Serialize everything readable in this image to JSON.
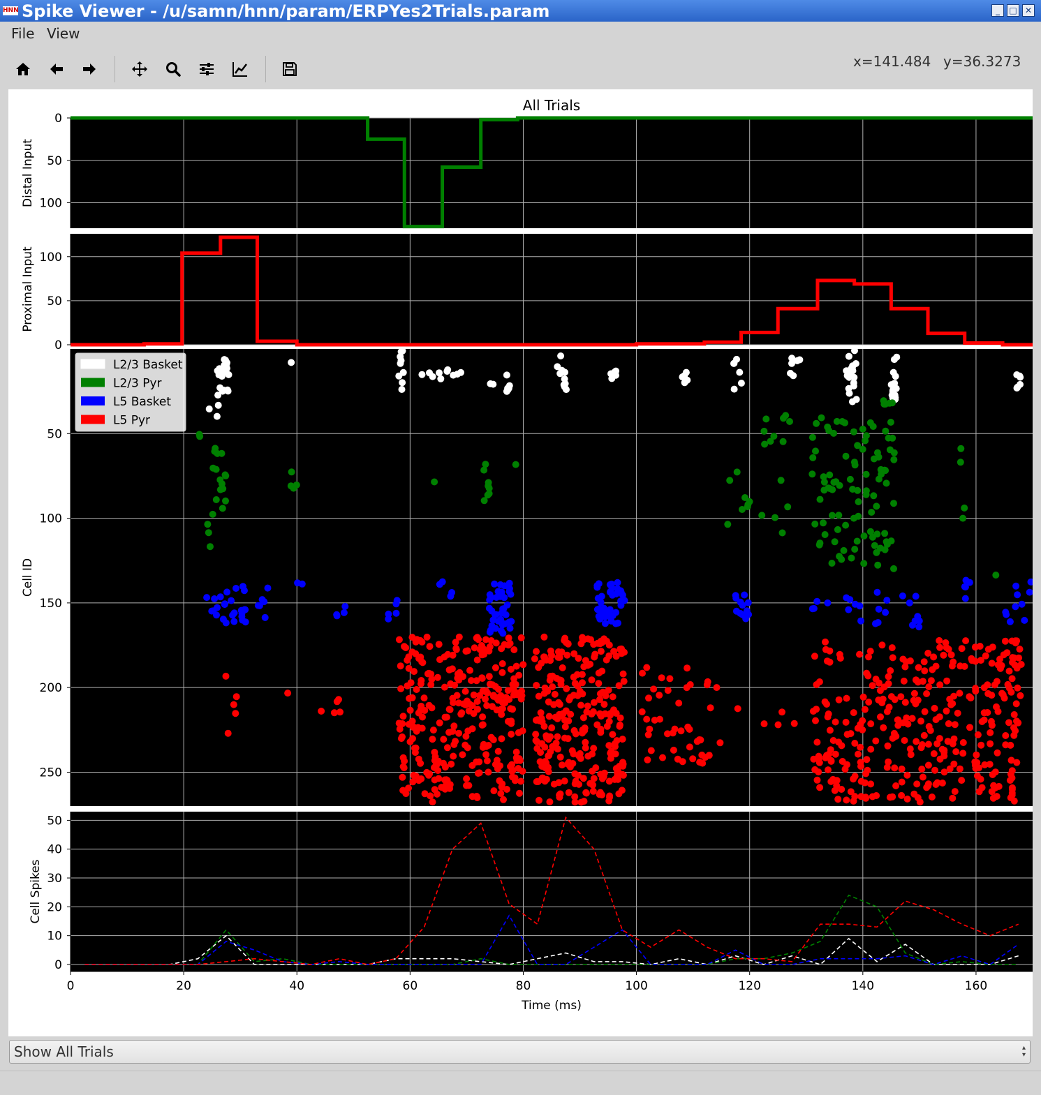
{
  "window": {
    "title": "Spike Viewer - /u/samn/hnn/param/ERPYes2Trials.param",
    "icon_text": "HNN",
    "controls": [
      "minimize-icon",
      "maximize-icon",
      "close-icon"
    ]
  },
  "menu": {
    "items": [
      "File",
      "View"
    ]
  },
  "toolbar": {
    "tools": [
      "home-icon",
      "back-icon",
      "forward-icon",
      "pan-icon",
      "zoom-icon",
      "subplots-icon",
      "edit-axes-icon",
      "save-icon"
    ],
    "coord_x": "x=141.484",
    "coord_y": "y=36.3273"
  },
  "chart_data": [
    {
      "type": "line",
      "panel": "distal",
      "title": "All Trials",
      "ylabel": "Distal Input",
      "ylim": [
        130,
        0
      ],
      "yticks": [
        "0",
        "50",
        "100"
      ],
      "xlim": [
        0,
        170
      ],
      "step": true,
      "color": "#008000",
      "x": [
        0,
        52.5,
        52.5,
        59,
        59,
        65.7,
        65.7,
        72.5,
        72.5,
        79,
        79,
        170
      ],
      "y": [
        0,
        0,
        25,
        25,
        128,
        128,
        58,
        58,
        2,
        2,
        0,
        0
      ]
    },
    {
      "type": "line",
      "panel": "proximal",
      "ylabel": "Proximal Input",
      "ylim": [
        0,
        122
      ],
      "yticks": [
        "0",
        "50",
        "100"
      ],
      "xlim": [
        0,
        170
      ],
      "step": true,
      "color": "#ff0000",
      "x": [
        0,
        13,
        13,
        19.7,
        19.7,
        26.5,
        26.5,
        33,
        33,
        40,
        40,
        100,
        100,
        112,
        112,
        118.5,
        118.5,
        125,
        125,
        132,
        132,
        138.5,
        138.5,
        145,
        145,
        151.5,
        151.5,
        158,
        158,
        164.7,
        164.7,
        170
      ],
      "y": [
        0,
        0,
        1,
        1,
        104,
        104,
        122,
        122,
        4,
        4,
        0,
        0,
        1,
        1,
        3,
        3,
        14,
        14,
        41,
        41,
        73,
        73,
        69,
        69,
        41,
        41,
        13,
        13,
        2,
        2,
        0,
        0
      ]
    },
    {
      "type": "scatter",
      "panel": "raster",
      "ylabel": "Cell ID",
      "ylim": [
        270,
        0
      ],
      "yticks": [
        "50",
        "100",
        "150",
        "200",
        "250"
      ],
      "xlim": [
        0,
        170
      ],
      "legend": "top-left",
      "series": [
        {
          "name": "L2/3 Basket",
          "color": "#ffffff",
          "y_range": [
            1,
            30
          ],
          "clusters": [
            [
              24,
              27,
              1,
              40,
              6
            ],
            [
              26,
              28,
              4,
              28,
              22
            ],
            [
              39,
              39,
              8,
              8,
              1
            ],
            [
              58,
              59,
              1,
              28,
              9
            ],
            [
              62,
              69,
              10,
              18,
              10
            ],
            [
              74,
              75,
              20,
              21,
              2
            ],
            [
              77,
              78,
              12,
              26,
              6
            ],
            [
              86,
              88,
              4,
              24,
              10
            ],
            [
              95,
              97,
              12,
              20,
              6
            ],
            [
              108,
              109,
              10,
              22,
              5
            ],
            [
              117,
              119,
              6,
              26,
              6
            ],
            [
              127,
              129,
              2,
              16,
              6
            ],
            [
              137,
              139,
              0,
              32,
              18
            ],
            [
              145,
              146,
              4,
              30,
              16
            ],
            [
              167,
              168,
              14,
              24,
              6
            ]
          ]
        },
        {
          "name": "L2/3 Pyr",
          "color": "#008000",
          "y_range": [
            30,
            130
          ],
          "clusters": [
            [
              22,
              23,
              50,
              52,
              2
            ],
            [
              25,
              28,
              57,
              98,
              16
            ],
            [
              24,
              25,
              100,
              118,
              3
            ],
            [
              38,
              40,
              50,
              95,
              4
            ],
            [
              64,
              65,
              78,
              80,
              1
            ],
            [
              73,
              74,
              68,
              90,
              8
            ],
            [
              78,
              79,
              68,
              70,
              1
            ],
            [
              116,
              120,
              70,
              120,
              8
            ],
            [
              122,
              128,
              35,
              110,
              14
            ],
            [
              131,
              141,
              40,
              130,
              60
            ],
            [
              141,
              146,
              30,
              130,
              40
            ],
            [
              157,
              158,
              52,
              110,
              4
            ],
            [
              163,
              164,
              130,
              135,
              1
            ]
          ]
        },
        {
          "name": "L5 Basket",
          "color": "#0000ff",
          "y_range": [
            130,
            170
          ],
          "clusters": [
            [
              24,
              31,
              140,
              162,
              26
            ],
            [
              33,
              35,
              140,
              162,
              6
            ],
            [
              40,
              41,
              135,
              140,
              2
            ],
            [
              46,
              49,
              150,
              168,
              4
            ],
            [
              54,
              58,
              145,
              160,
              5
            ],
            [
              65,
              68,
              135,
              165,
              4
            ],
            [
              74,
              78,
              138,
              170,
              40
            ],
            [
              93,
              98,
              138,
              165,
              40
            ],
            [
              117,
              120,
              145,
              160,
              12
            ],
            [
              131,
              134,
              148,
              155,
              4
            ],
            [
              137,
              141,
              145,
              162,
              6
            ],
            [
              142,
              145,
              142,
              165,
              6
            ],
            [
              147,
              150,
              145,
              165,
              8
            ],
            [
              157,
              159,
              135,
              155,
              5
            ],
            [
              165,
              170,
              135,
              162,
              12
            ]
          ]
        },
        {
          "name": "L5 Pyr",
          "color": "#ff0000",
          "y_range": [
            170,
            270
          ],
          "clusters": [
            [
              27,
              31,
              192,
              228,
              5
            ],
            [
              38,
              40,
              202,
              204,
              1
            ],
            [
              44,
              49,
              192,
              226,
              5
            ],
            [
              58,
              80,
              170,
              268,
              300
            ],
            [
              82,
              98,
              170,
              268,
              260
            ],
            [
              101,
              115,
              188,
              245,
              45
            ],
            [
              117,
              129,
              210,
              222,
              5
            ],
            [
              131,
              168,
              172,
              268,
              340
            ]
          ]
        }
      ]
    },
    {
      "type": "line",
      "panel": "spikes",
      "ylabel": "Cell Spikes",
      "xlabel": "Time (ms)",
      "ylim": [
        0,
        53
      ],
      "yticks": [
        "0",
        "10",
        "20",
        "30",
        "40",
        "50"
      ],
      "xlim": [
        0,
        170
      ],
      "xticks": [
        "0",
        "20",
        "40",
        "60",
        "80",
        "100",
        "120",
        "140",
        "160"
      ],
      "dashed": true,
      "x": [
        2.5,
        7.5,
        12.5,
        17.5,
        22.5,
        27.5,
        32.5,
        37.5,
        42.5,
        47.5,
        52.5,
        57.5,
        62.5,
        67.5,
        72.5,
        77.5,
        82.5,
        87.5,
        92.5,
        97.5,
        102.5,
        107.5,
        112.5,
        117.5,
        122.5,
        127.5,
        132.5,
        137.5,
        142.5,
        147.5,
        152.5,
        157.5,
        162.5,
        167.5
      ],
      "series": [
        {
          "color": "#ffffff",
          "values": [
            0,
            0,
            0,
            0,
            2,
            10,
            0,
            0,
            0,
            0,
            0,
            2,
            2,
            2,
            1,
            0,
            2,
            4,
            1,
            1,
            0,
            2,
            0,
            3,
            0,
            3,
            0,
            9,
            1,
            7,
            0,
            0,
            0,
            3
          ]
        },
        {
          "color": "#008000",
          "values": [
            0,
            0,
            0,
            0,
            0,
            12,
            1,
            2,
            0,
            0,
            0,
            0,
            0,
            0,
            2,
            0,
            0,
            0,
            0,
            0,
            0,
            0,
            0,
            2,
            2,
            4,
            8,
            24,
            20,
            4,
            0,
            1,
            0,
            0
          ]
        },
        {
          "color": "#0000ff",
          "values": [
            0,
            0,
            0,
            0,
            0,
            8,
            5,
            1,
            0,
            1,
            0,
            0,
            0,
            0,
            0,
            17,
            0,
            0,
            6,
            12,
            0,
            0,
            0,
            5,
            0,
            0,
            2,
            2,
            2,
            3,
            0,
            3,
            0,
            7
          ]
        },
        {
          "color": "#ff0000",
          "values": [
            0,
            0,
            0,
            0,
            0,
            1,
            2,
            1,
            0,
            2,
            0,
            2,
            13,
            40,
            49,
            21,
            14,
            51,
            40,
            12,
            6,
            12,
            6,
            2,
            2,
            1,
            14,
            14,
            13,
            22,
            19,
            14,
            10,
            14
          ]
        }
      ]
    }
  ],
  "trial_selector": {
    "value": "Show All Trials"
  }
}
